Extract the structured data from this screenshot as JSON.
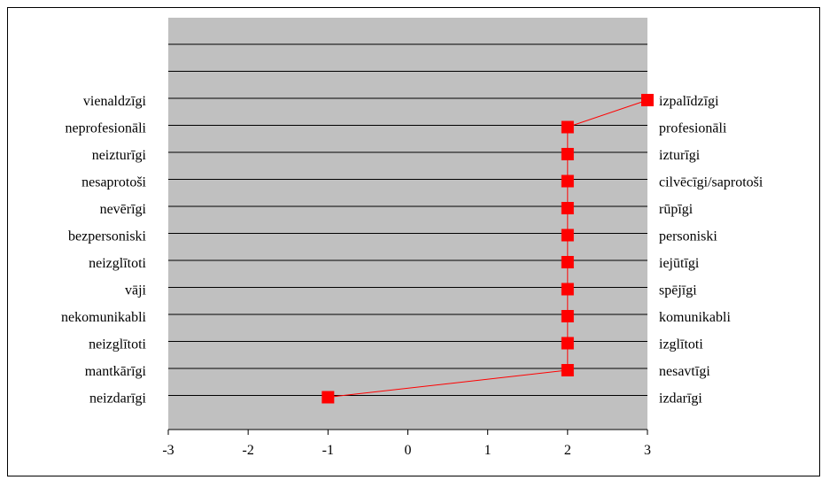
{
  "chart_data": {
    "type": "line",
    "title": "",
    "xlabel": "",
    "ylabel": "",
    "xlim": [
      -3,
      3
    ],
    "x_ticks": [
      "-3",
      "-2",
      "-1",
      "0",
      "1",
      "2",
      "3"
    ],
    "grid": true,
    "plot_background": "#C0C0C0",
    "marker_color": "#FF0000",
    "line_color": "#FF0000",
    "rows": [
      {
        "left": "vienaldzīgi",
        "right": "izpalīdzīgi",
        "value": 3
      },
      {
        "left": "neprofesionāli",
        "right": "profesionāli",
        "value": 2
      },
      {
        "left": "neizturīgi",
        "right": "izturīgi",
        "value": 2
      },
      {
        "left": "nesaprotoši",
        "right": "cilvēcīgi/saprotoši",
        "value": 2
      },
      {
        "left": "nevērīgi",
        "right": "rūpīgi",
        "value": 2
      },
      {
        "left": "bezpersoniski",
        "right": "personiski",
        "value": 2
      },
      {
        "left": "neizglītoti",
        "right": "iejūtīgi",
        "value": 2
      },
      {
        "left": "vāji",
        "right": "spējīgi",
        "value": 2
      },
      {
        "left": "nekomunikabli",
        "right": "komunikabli",
        "value": 2
      },
      {
        "left": "neizglītoti",
        "right": "izglītoti",
        "value": 2
      },
      {
        "left": "mantkārīgi",
        "right": "nesavtīgi",
        "value": 2
      },
      {
        "left": "neizdarīgi",
        "right": "izdarīgi",
        "value": -1
      }
    ]
  }
}
